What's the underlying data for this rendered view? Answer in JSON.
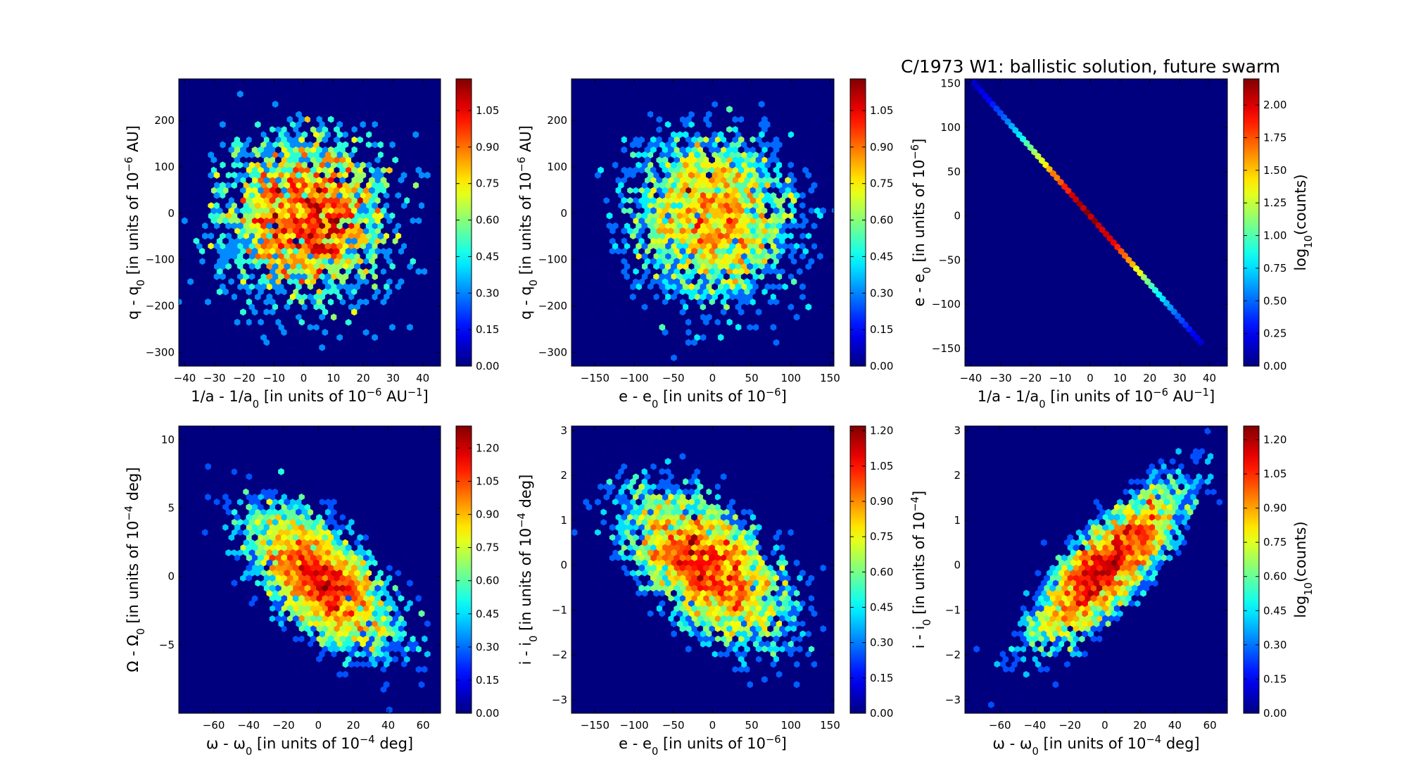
{
  "figure": {
    "suptitle": "C/1973 W1:  ballistic solution, future swarm",
    "colormap": "jet",
    "background": "#00007f"
  },
  "chart_data": [
    {
      "type": "heatmap",
      "title": "",
      "xlabel": "1/a - 1/a0 [in units of 10^-6 AU^-1]",
      "xlabel_parts": [
        [
          "1/a - 1/a",
          ""
        ],
        [
          "0",
          "sub"
        ],
        [
          " [in units of 10",
          ""
        ],
        [
          "−6",
          "sup"
        ],
        [
          " AU",
          ""
        ],
        [
          "−1",
          "sup"
        ],
        [
          "]",
          ""
        ]
      ],
      "ylabel": "q - q0 [in units of 10^-6 AU]",
      "ylabel_parts": [
        [
          "q - q",
          ""
        ],
        [
          "0",
          "sub"
        ],
        [
          " [in units of 10",
          ""
        ],
        [
          "−6",
          "sup"
        ],
        [
          " AU]",
          ""
        ]
      ],
      "xlim": [
        -42,
        46
      ],
      "ylim": [
        -330,
        290
      ],
      "xticks": [
        -40,
        -30,
        -20,
        -10,
        0,
        10,
        20,
        30,
        40
      ],
      "yticks": [
        -300,
        -200,
        -100,
        0,
        100,
        200
      ],
      "colorbar": {
        "ticks": [
          "0.00",
          "0.15",
          "0.30",
          "0.45",
          "0.60",
          "0.75",
          "0.90",
          "1.05"
        ],
        "max": 1.18,
        "label": ""
      },
      "distribution": {
        "kind": "blob",
        "center": [
          1,
          -10
        ],
        "sigma": [
          16,
          105
        ],
        "rho": 0,
        "peak": 1.18,
        "count": 4500,
        "seed": 11
      }
    },
    {
      "type": "heatmap",
      "title": "",
      "xlabel": "e - e0 [in units of 10^-6]",
      "xlabel_parts": [
        [
          "e - e",
          ""
        ],
        [
          "0",
          "sub"
        ],
        [
          " [in units of 10",
          ""
        ],
        [
          "−6",
          "sup"
        ],
        [
          "]",
          ""
        ]
      ],
      "ylabel": "q - q0 [in units of 10^-6 AU]",
      "ylabel_parts": [
        [
          "q - q",
          ""
        ],
        [
          "0",
          "sub"
        ],
        [
          " [in units of 10",
          ""
        ],
        [
          "−6",
          "sup"
        ],
        [
          " AU]",
          ""
        ]
      ],
      "xlim": [
        -180,
        155
      ],
      "ylim": [
        -330,
        290
      ],
      "xticks": [
        -150,
        -100,
        -50,
        0,
        50,
        100,
        150
      ],
      "yticks": [
        -300,
        -200,
        -100,
        0,
        100,
        200
      ],
      "colorbar": {
        "ticks": [
          "0.00",
          "0.15",
          "0.30",
          "0.45",
          "0.60",
          "0.75",
          "0.90",
          "1.05"
        ],
        "max": 1.18,
        "label": ""
      },
      "distribution": {
        "kind": "blob",
        "center": [
          0,
          -10
        ],
        "sigma": [
          60,
          105
        ],
        "rho": 0,
        "peak": 1.18,
        "count": 4500,
        "seed": 12
      }
    },
    {
      "type": "heatmap",
      "title": "",
      "xlabel": "1/a - 1/a0 [in units of 10^-6 AU^-1]",
      "xlabel_parts": [
        [
          "1/a - 1/a",
          ""
        ],
        [
          "0",
          "sub"
        ],
        [
          " [in units of 10",
          ""
        ],
        [
          "−6",
          "sup"
        ],
        [
          " AU",
          ""
        ],
        [
          "−1",
          "sup"
        ],
        [
          "]",
          ""
        ]
      ],
      "ylabel": "e - e0 [in units of 10^-6]",
      "ylabel_parts": [
        [
          "e - e",
          ""
        ],
        [
          "0",
          "sub"
        ],
        [
          " [in units of 10",
          ""
        ],
        [
          "−6",
          "sup"
        ],
        [
          "]",
          ""
        ]
      ],
      "xlim": [
        -42,
        46
      ],
      "ylim": [
        -170,
        155
      ],
      "xticks": [
        -40,
        -30,
        -20,
        -10,
        0,
        10,
        20,
        30,
        40
      ],
      "yticks": [
        -150,
        -100,
        -50,
        0,
        50,
        100,
        150
      ],
      "colorbar": {
        "ticks": [
          "0.00",
          "0.25",
          "0.50",
          "0.75",
          "1.00",
          "1.25",
          "1.50",
          "1.75",
          "2.00"
        ],
        "max": 2.2,
        "label": "log10(counts)",
        "label_parts": [
          [
            "log",
            ""
          ],
          [
            "10",
            "sub"
          ],
          [
            "(counts)",
            ""
          ]
        ]
      },
      "distribution": {
        "kind": "line",
        "x_range": [
          -39,
          37
        ],
        "slope": -3.86,
        "intercept": 0,
        "center": 0,
        "sigma": 17,
        "peak": 2.2,
        "seed": 13
      }
    },
    {
      "type": "heatmap",
      "title": "",
      "xlabel": "ω - ω0 [in units of 10^-4 deg]",
      "xlabel_parts": [
        [
          "ω - ω",
          ""
        ],
        [
          "0",
          "sub"
        ],
        [
          " [in units of 10",
          ""
        ],
        [
          "−4",
          "sup"
        ],
        [
          " deg]",
          ""
        ]
      ],
      "ylabel": "Ω - Ω0 [in units of 10^-4 deg]",
      "ylabel_parts": [
        [
          "Ω - Ω",
          ""
        ],
        [
          "0",
          "sub"
        ],
        [
          " [in units of 10",
          ""
        ],
        [
          "−4",
          "sup"
        ],
        [
          " deg]",
          ""
        ]
      ],
      "xlim": [
        -80,
        70
      ],
      "ylim": [
        -10,
        11
      ],
      "xticks": [
        -60,
        -40,
        -20,
        0,
        20,
        40,
        60
      ],
      "yticks": [
        -5,
        0,
        5,
        10
      ],
      "colorbar": {
        "ticks": [
          "0.00",
          "0.15",
          "0.30",
          "0.45",
          "0.60",
          "0.75",
          "0.90",
          "1.05",
          "1.20"
        ],
        "max": 1.3,
        "label": ""
      },
      "distribution": {
        "kind": "blob",
        "center": [
          2,
          -0.3
        ],
        "sigma": [
          23,
          2.9
        ],
        "rho": -0.6,
        "peak": 1.3,
        "count": 5000,
        "seed": 14
      }
    },
    {
      "type": "heatmap",
      "title": "",
      "xlabel": "e - e0 [in units of 10^-6]",
      "xlabel_parts": [
        [
          "e - e",
          ""
        ],
        [
          "0",
          "sub"
        ],
        [
          " [in units of 10",
          ""
        ],
        [
          "−6",
          "sup"
        ],
        [
          "]",
          ""
        ]
      ],
      "ylabel": "i - i0 [in units of 10^-4 deg]",
      "ylabel_parts": [
        [
          "i - i",
          ""
        ],
        [
          "0",
          "sub"
        ],
        [
          " [in units of 10",
          ""
        ],
        [
          "−4",
          "sup"
        ],
        [
          " deg]",
          ""
        ]
      ],
      "xlim": [
        -180,
        155
      ],
      "ylim": [
        -3.3,
        3.1
      ],
      "xticks": [
        -150,
        -100,
        -50,
        0,
        50,
        100,
        150
      ],
      "yticks": [
        -3,
        -2,
        -1,
        0,
        1,
        2,
        3
      ],
      "colorbar": {
        "ticks": [
          "0.00",
          "0.15",
          "0.30",
          "0.45",
          "0.60",
          "0.75",
          "0.90",
          "1.05",
          "1.20"
        ],
        "max": 1.22,
        "label": ""
      },
      "distribution": {
        "kind": "blob",
        "center": [
          -10,
          0
        ],
        "sigma": [
          58,
          0.95
        ],
        "rho": -0.55,
        "peak": 1.22,
        "count": 5000,
        "seed": 15
      }
    },
    {
      "type": "heatmap",
      "title": "",
      "xlabel": "ω - ω0 [in units of 10^-4 deg]",
      "xlabel_parts": [
        [
          "ω - ω",
          ""
        ],
        [
          "0",
          "sub"
        ],
        [
          " [in units of 10",
          ""
        ],
        [
          "−4",
          "sup"
        ],
        [
          " deg]",
          ""
        ]
      ],
      "ylabel": "i - i0 [in units of 10^-4]",
      "ylabel_parts": [
        [
          "i - i",
          ""
        ],
        [
          "0",
          "sub"
        ],
        [
          " [in units of 10",
          ""
        ],
        [
          "−4",
          "sup"
        ],
        [
          "]",
          ""
        ]
      ],
      "xlim": [
        -80,
        70
      ],
      "ylim": [
        -3.3,
        3.1
      ],
      "xticks": [
        -60,
        -40,
        -20,
        0,
        20,
        40,
        60
      ],
      "yticks": [
        -3,
        -2,
        -1,
        0,
        1,
        2,
        3
      ],
      "colorbar": {
        "ticks": [
          "0.00",
          "0.15",
          "0.30",
          "0.45",
          "0.60",
          "0.75",
          "0.90",
          "1.05",
          "1.20"
        ],
        "max": 1.26,
        "label": "log10(counts)",
        "label_parts": [
          [
            "log",
            ""
          ],
          [
            "10",
            "sub"
          ],
          [
            "(counts)",
            ""
          ]
        ]
      },
      "distribution": {
        "kind": "blob",
        "center": [
          2,
          0
        ],
        "sigma": [
          23,
          0.95
        ],
        "rho": 0.8,
        "peak": 1.26,
        "count": 5000,
        "seed": 16
      }
    }
  ]
}
